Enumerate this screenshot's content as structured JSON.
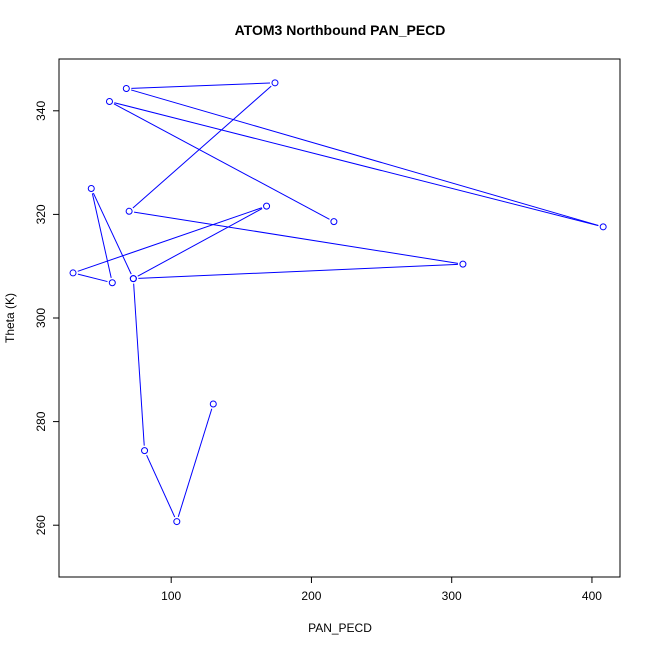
{
  "chart_data": {
    "type": "line",
    "title": "ATOM3 Northbound PAN_PECD",
    "xlabel": "PAN_PECD",
    "ylabel": "Theta (K)",
    "xlim": [
      20,
      420
    ],
    "ylim": [
      250,
      350
    ],
    "x_ticks": [
      100,
      200,
      300,
      400
    ],
    "y_ticks": [
      260,
      280,
      300,
      320,
      340
    ],
    "grid": false,
    "marker": "open-circle",
    "series": [
      {
        "color": "#0000ff",
        "x": [
          130,
          104,
          81,
          73,
          43,
          58,
          30,
          168,
          73,
          308,
          70,
          174,
          68,
          408,
          56,
          216
        ],
        "y": [
          283.4,
          260.7,
          274.4,
          307.6,
          325.0,
          306.8,
          308.7,
          321.6,
          307.6,
          310.4,
          320.6,
          345.4,
          344.3,
          317.6,
          341.8,
          318.6
        ]
      }
    ]
  }
}
